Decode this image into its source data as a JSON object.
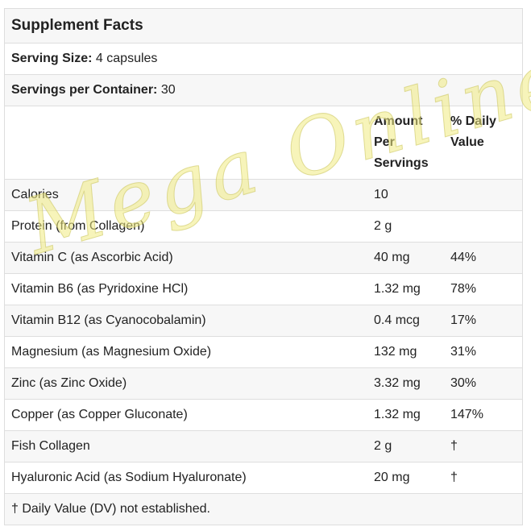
{
  "title": "Supplement Facts",
  "serving_size": {
    "label": "Serving Size:",
    "value": " 4 capsules"
  },
  "servings_per_container": {
    "label": "Servings per Container:",
    "value": " 30"
  },
  "header": {
    "amount_line1": "Amount",
    "amount_line2": "Per",
    "amount_line3": "Servings",
    "dv_line1": "% Daily",
    "dv_line2": "Value"
  },
  "rows": [
    {
      "name": "Calories",
      "amount": "10",
      "dv": ""
    },
    {
      "name": "Protein (from Collagen)",
      "amount": "2 g",
      "dv": ""
    },
    {
      "name": "Vitamin C (as Ascorbic Acid)",
      "amount": "40 mg",
      "dv": "44%"
    },
    {
      "name": "Vitamin B6 (as Pyridoxine HCl)",
      "amount": "1.32 mg",
      "dv": "78%"
    },
    {
      "name": "Vitamin B12 (as Cyanocobalamin)",
      "amount": "0.4 mcg",
      "dv": "17%"
    },
    {
      "name": "Magnesium (as Magnesium Oxide)",
      "amount": "132 mg",
      "dv": "31%"
    },
    {
      "name": "Zinc (as Zinc Oxide)",
      "amount": "3.32 mg",
      "dv": "30%"
    },
    {
      "name": "Copper (as Copper Gluconate)",
      "amount": "1.32 mg",
      "dv": "147%"
    },
    {
      "name": "Fish Collagen",
      "amount": "2 g",
      "dv": "†"
    },
    {
      "name": "Hyaluronic Acid (as Sodium Hyaluronate)",
      "amount": "20 mg",
      "dv": "†"
    }
  ],
  "footnote": "† Daily Value (DV) not established.",
  "watermark": "Mega Online"
}
